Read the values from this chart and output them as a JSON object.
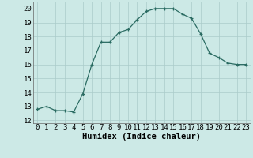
{
  "x": [
    0,
    1,
    2,
    3,
    4,
    5,
    6,
    7,
    8,
    9,
    10,
    11,
    12,
    13,
    14,
    15,
    16,
    17,
    18,
    19,
    20,
    21,
    22,
    23
  ],
  "y": [
    12.8,
    13.0,
    12.7,
    12.7,
    12.6,
    13.9,
    16.0,
    17.6,
    17.6,
    18.3,
    18.5,
    19.2,
    19.8,
    20.0,
    20.0,
    20.0,
    19.6,
    19.3,
    18.2,
    16.8,
    16.5,
    16.1,
    16.0,
    16.0
  ],
  "xlabel": "Humidex (Indice chaleur)",
  "xlim": [
    -0.5,
    23.5
  ],
  "ylim": [
    11.8,
    20.5
  ],
  "yticks": [
    12,
    13,
    14,
    15,
    16,
    17,
    18,
    19,
    20
  ],
  "xticks": [
    0,
    1,
    2,
    3,
    4,
    5,
    6,
    7,
    8,
    9,
    10,
    11,
    12,
    13,
    14,
    15,
    16,
    17,
    18,
    19,
    20,
    21,
    22,
    23
  ],
  "line_color": "#2a6b62",
  "bg_color": "#cce9e6",
  "grid_color": "#aaccca",
  "label_fontsize": 7.5,
  "tick_fontsize": 6.5
}
